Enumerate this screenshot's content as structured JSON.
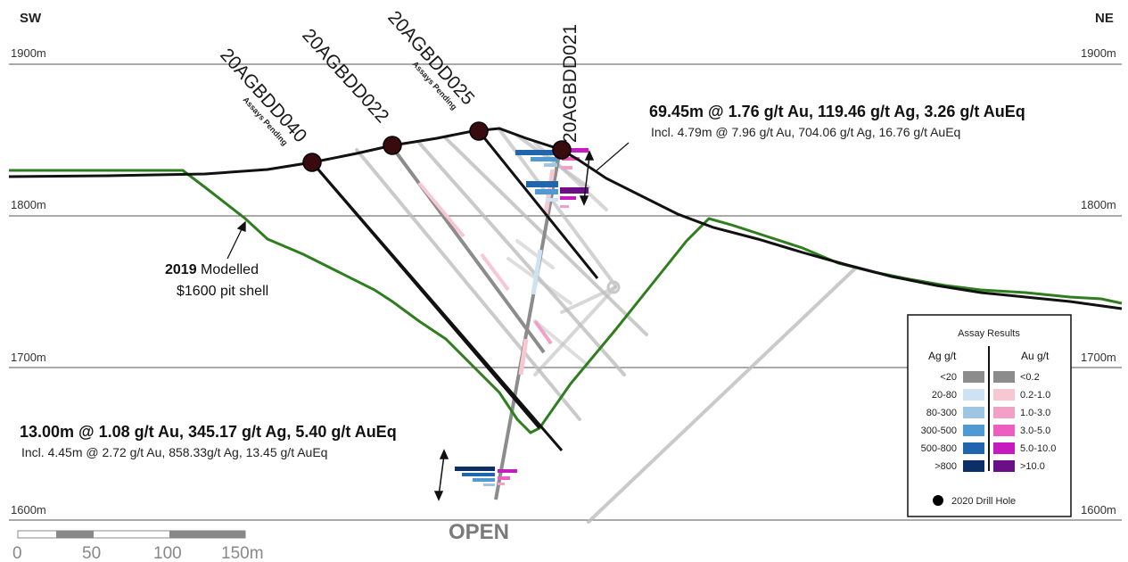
{
  "directions": {
    "left": "SW",
    "right": "NE"
  },
  "elevations": [
    {
      "label": "1900m",
      "value": 1900
    },
    {
      "label": "1800m",
      "value": 1800
    },
    {
      "label": "1700m",
      "value": 1700
    },
    {
      "label": "1600m",
      "value": 1600
    }
  ],
  "drill_holes": [
    {
      "id": "20AGBDD040",
      "status": "Assays Pending"
    },
    {
      "id": "20AGBDD022",
      "status": ""
    },
    {
      "id": "20AGBDD025",
      "status": "Assays Pending"
    },
    {
      "id": "20AGBDD021",
      "status": ""
    }
  ],
  "intercepts": {
    "upper": {
      "headline": "69.45m @ 1.76 g/t Au, 119.46 g/t Ag, 3.26 g/t AuEq",
      "detail": "Incl. 4.79m @ 7.96 g/t Au, 704.06 g/t Ag, 16.76 g/t AuEq"
    },
    "lower": {
      "headline": "13.00m @ 1.08 g/t Au, 345.17 g/t Ag, 5.40 g/t AuEq",
      "detail": "Incl. 4.45m @ 2.72 g/t Au, 858.33g/t Ag, 13.45 g/t AuEq"
    }
  },
  "pit_shell": {
    "year": "2019",
    "line1": " Modelled",
    "line2": "$1600 pit shell",
    "color": "#2e7d1f"
  },
  "open_label": "OPEN",
  "scale_bar": {
    "ticks": [
      "0",
      "50",
      "100",
      "150m"
    ]
  },
  "legend": {
    "title": "Assay Results",
    "ag_header": "Ag g/t",
    "au_header": "Au g/t",
    "rows": [
      {
        "ag": "<20",
        "au": "<0.2",
        "ag_color": "#8c8c8c",
        "au_color": "#8c8c8c"
      },
      {
        "ag": "20-80",
        "au": "0.2-1.0",
        "ag_color": "#cfe2f3",
        "au_color": "#f8c8d2"
      },
      {
        "ag": "80-300",
        "au": "1.0-3.0",
        "ag_color": "#9ec6e2",
        "au_color": "#f2a0c6"
      },
      {
        "ag": "300-500",
        "au": "3.0-5.0",
        "ag_color": "#4f9ad2",
        "au_color": "#ec5ec0"
      },
      {
        "ag": "500-800",
        "au": "5.0-10.0",
        "ag_color": "#2166ac",
        "au_color": "#c51bbf"
      },
      {
        "ag": ">800",
        "au": ">10.0",
        "ag_color": "#0b2f66",
        "au_color": "#6a0f86"
      }
    ],
    "drill_hole_label": "2020 Drill Hole"
  }
}
